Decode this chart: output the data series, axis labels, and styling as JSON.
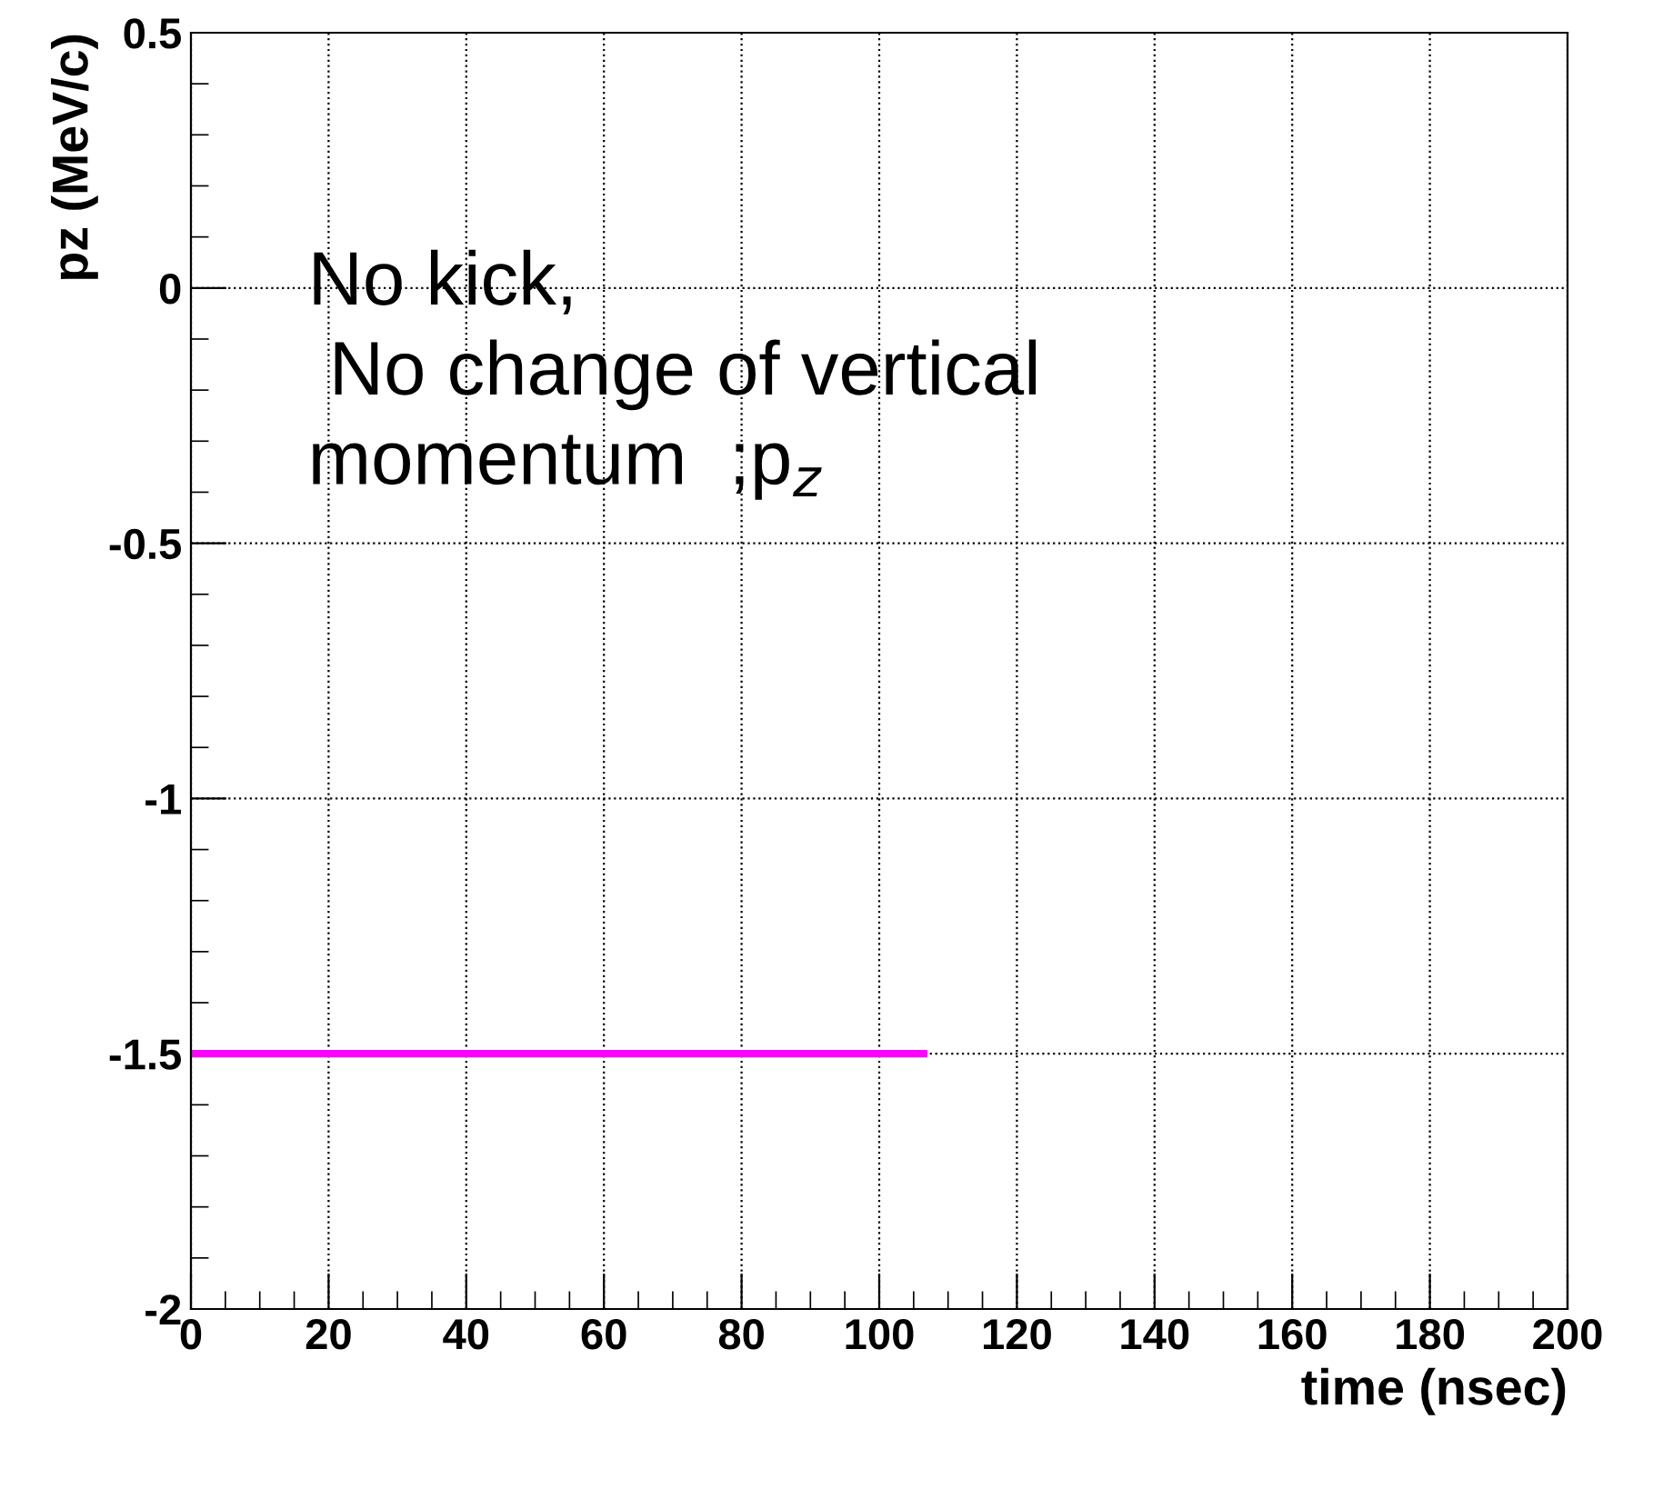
{
  "chart_data": {
    "type": "line",
    "xlabel": "time (nsec)",
    "ylabel": "pz (MeV/c)",
    "x": [
      0,
      107
    ],
    "series": [
      {
        "color": "#ff00ff",
        "values": [
          -1.5,
          -1.5
        ]
      }
    ],
    "xlim": [
      0,
      200
    ],
    "xticks": [
      0,
      20,
      40,
      60,
      80,
      100,
      120,
      140,
      160,
      180,
      200
    ],
    "ylim": [
      -2,
      0.5
    ],
    "yticks": [
      -2,
      -1.5,
      -1,
      -0.5,
      0,
      0.5
    ],
    "grid": true,
    "marker": "none",
    "line_style": "solid",
    "annotations": [
      "No kick,\n No change of vertical\nmomentum  ;p$_{z}$"
    ]
  }
}
